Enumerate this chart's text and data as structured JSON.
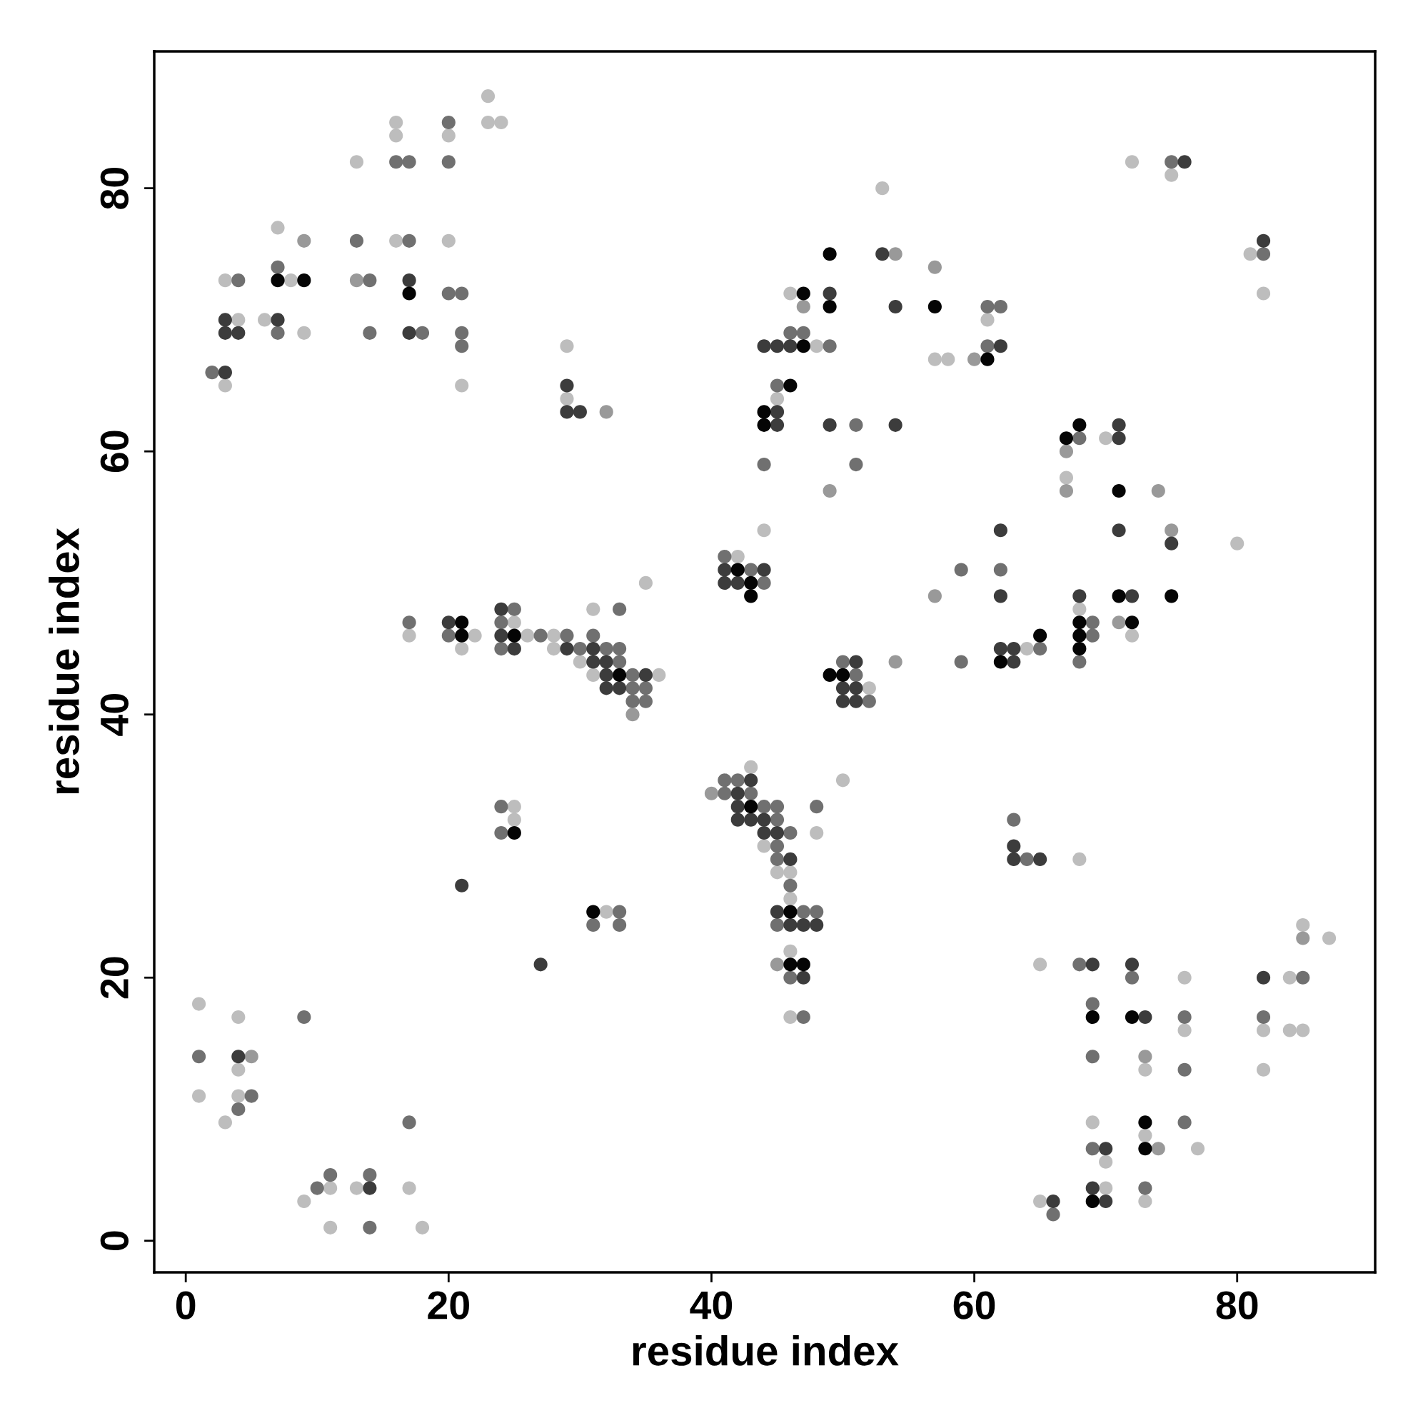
{
  "chart_data": {
    "type": "scatter",
    "xlabel": "residue index",
    "ylabel": "residue index",
    "xlim": [
      -2.4,
      90.5
    ],
    "ylim": [
      -2.4,
      90.4
    ],
    "xticks": [
      0,
      20,
      40,
      60,
      80
    ],
    "yticks": [
      0,
      20,
      40,
      60,
      80
    ],
    "grid": false,
    "legend": false,
    "marker": "circle",
    "series": [
      {
        "color": "#bdbdbd",
        "x": [
          23,
          16,
          23,
          24,
          16,
          20,
          13,
          72,
          75,
          53,
          7,
          16,
          20,
          81,
          3,
          8,
          46,
          82,
          4,
          6,
          61,
          9,
          29,
          48,
          57,
          58,
          3,
          21,
          29,
          45,
          70,
          67,
          44,
          80,
          42,
          35,
          31,
          68,
          25,
          17,
          22,
          26,
          28,
          72,
          21,
          28,
          64,
          30,
          31,
          36,
          52,
          43,
          50,
          25,
          25,
          48,
          44,
          68,
          45,
          46,
          46,
          32,
          85,
          87,
          46,
          65,
          76,
          84,
          1,
          4,
          46,
          76,
          82,
          84,
          85,
          4,
          73,
          82,
          1,
          4,
          3,
          69,
          73,
          77,
          70,
          11,
          13,
          17,
          70,
          9,
          65,
          73,
          11,
          18
        ],
        "values": [
          87,
          85,
          85,
          85,
          84,
          84,
          82,
          82,
          81,
          80,
          77,
          76,
          76,
          75,
          73,
          73,
          72,
          72,
          70,
          70,
          70,
          69,
          68,
          68,
          67,
          67,
          65,
          65,
          64,
          64,
          61,
          58,
          54,
          53,
          52,
          50,
          48,
          48,
          47,
          46,
          46,
          46,
          46,
          46,
          45,
          45,
          45,
          44,
          43,
          43,
          42,
          36,
          35,
          33,
          32,
          31,
          30,
          29,
          28,
          28,
          26,
          25,
          24,
          23,
          22,
          21,
          20,
          20,
          18,
          17,
          17,
          16,
          16,
          16,
          16,
          13,
          13,
          13,
          11,
          11,
          9,
          9,
          8,
          7,
          6,
          4,
          4,
          4,
          4,
          3,
          3,
          3,
          1,
          1
        ]
      },
      {
        "color": "#999999",
        "x": [
          9,
          54,
          57,
          13,
          47,
          60,
          32,
          67,
          49,
          67,
          74,
          75,
          57,
          71,
          54,
          34,
          40,
          85,
          45,
          5,
          73,
          74
        ],
        "values": [
          76,
          75,
          74,
          73,
          71,
          67,
          63,
          60,
          57,
          57,
          57,
          54,
          49,
          47,
          44,
          40,
          34,
          23,
          21,
          14,
          14,
          7
        ]
      },
      {
        "color": "#707070",
        "x": [
          20,
          16,
          17,
          20,
          75,
          13,
          17,
          82,
          7,
          4,
          14,
          20,
          21,
          61,
          62,
          7,
          14,
          18,
          21,
          46,
          47,
          21,
          49,
          61,
          2,
          45,
          51,
          68,
          44,
          51,
          41,
          43,
          59,
          62,
          44,
          25,
          33,
          17,
          24,
          69,
          20,
          27,
          29,
          31,
          69,
          24,
          30,
          32,
          33,
          65,
          33,
          50,
          59,
          68,
          34,
          51,
          34,
          35,
          34,
          35,
          52,
          41,
          42,
          41,
          43,
          24,
          44,
          45,
          48,
          45,
          63,
          24,
          46,
          45,
          45,
          64,
          46,
          33,
          47,
          48,
          31,
          33,
          45,
          68,
          46,
          72,
          85,
          69,
          9,
          47,
          76,
          82,
          1,
          69,
          76,
          5,
          4,
          17,
          76,
          69,
          11,
          14,
          10,
          73,
          66,
          14
        ],
        "values": [
          85,
          82,
          82,
          82,
          82,
          76,
          76,
          75,
          74,
          73,
          73,
          72,
          72,
          71,
          71,
          69,
          69,
          69,
          69,
          69,
          69,
          68,
          68,
          68,
          66,
          65,
          62,
          61,
          59,
          59,
          52,
          51,
          51,
          51,
          50,
          48,
          48,
          47,
          47,
          47,
          46,
          46,
          46,
          46,
          46,
          45,
          45,
          45,
          45,
          45,
          44,
          44,
          44,
          44,
          43,
          43,
          42,
          42,
          41,
          41,
          41,
          35,
          35,
          34,
          34,
          33,
          33,
          33,
          33,
          32,
          32,
          31,
          31,
          30,
          29,
          29,
          27,
          25,
          25,
          25,
          24,
          24,
          24,
          21,
          20,
          20,
          20,
          18,
          17,
          17,
          17,
          17,
          14,
          14,
          13,
          11,
          10,
          9,
          9,
          7,
          5,
          5,
          4,
          4,
          2,
          1
        ]
      },
      {
        "color": "#3c3c3c",
        "x": [
          76,
          82,
          53,
          17,
          49,
          54,
          3,
          7,
          3,
          4,
          17,
          44,
          45,
          46,
          62,
          3,
          29,
          29,
          30,
          45,
          45,
          49,
          54,
          71,
          71,
          62,
          71,
          75,
          41,
          44,
          41,
          42,
          62,
          68,
          72,
          24,
          20,
          24,
          25,
          29,
          31,
          62,
          63,
          31,
          32,
          51,
          63,
          32,
          35,
          32,
          33,
          50,
          51,
          50,
          51,
          43,
          42,
          42,
          42,
          43,
          44,
          44,
          45,
          63,
          46,
          63,
          65,
          21,
          45,
          46,
          47,
          48,
          27,
          69,
          72,
          47,
          82,
          73,
          4,
          70,
          14,
          69,
          66,
          70
        ],
        "values": [
          82,
          76,
          75,
          73,
          72,
          71,
          70,
          70,
          69,
          69,
          69,
          68,
          68,
          68,
          68,
          66,
          65,
          63,
          63,
          63,
          62,
          62,
          62,
          62,
          61,
          54,
          54,
          53,
          51,
          51,
          50,
          50,
          49,
          49,
          49,
          48,
          47,
          46,
          45,
          45,
          45,
          45,
          45,
          44,
          44,
          44,
          44,
          43,
          43,
          42,
          42,
          42,
          42,
          41,
          41,
          35,
          34,
          33,
          32,
          32,
          32,
          31,
          31,
          30,
          29,
          29,
          29,
          27,
          25,
          24,
          24,
          24,
          21,
          21,
          21,
          20,
          20,
          17,
          14,
          7,
          4,
          4,
          3,
          3
        ]
      },
      {
        "color": "#050505",
        "x": [
          49,
          7,
          9,
          17,
          47,
          49,
          57,
          47,
          61,
          46,
          44,
          44,
          68,
          67,
          71,
          42,
          43,
          43,
          71,
          75,
          21,
          68,
          72,
          21,
          25,
          65,
          68,
          68,
          62,
          33,
          49,
          50,
          43,
          25,
          31,
          46,
          46,
          47,
          69,
          72,
          73,
          73,
          69
        ],
        "values": [
          75,
          73,
          73,
          72,
          72,
          71,
          71,
          68,
          67,
          65,
          63,
          62,
          62,
          61,
          57,
          51,
          50,
          49,
          49,
          49,
          47,
          47,
          47,
          46,
          46,
          46,
          46,
          45,
          44,
          43,
          43,
          43,
          33,
          31,
          25,
          25,
          21,
          21,
          17,
          17,
          9,
          7,
          3
        ]
      }
    ]
  }
}
